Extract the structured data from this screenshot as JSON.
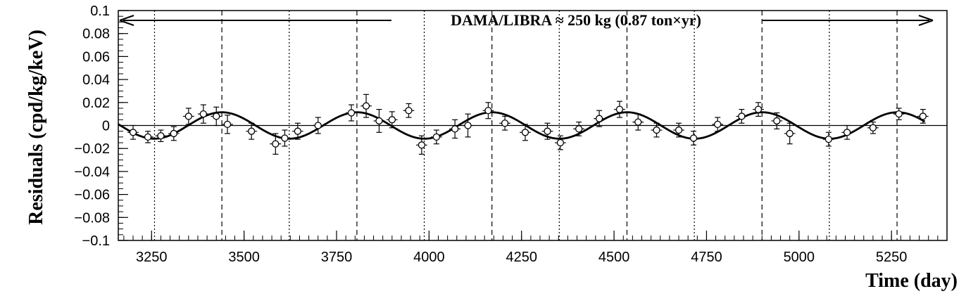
{
  "chart_data": {
    "type": "scatter",
    "xlabel": "Time (day)",
    "ylabel": "Residuals (cpd/kg/keV)",
    "xlim": [
      3160,
      5400
    ],
    "ylim": [
      -0.1,
      0.1
    ],
    "x_ticks": [
      "3250",
      "3500",
      "3750",
      "4000",
      "4250",
      "4500",
      "4750",
      "5000",
      "5250"
    ],
    "x_tick_values": [
      3250,
      3500,
      3750,
      4000,
      4250,
      4500,
      4750,
      5000,
      5250
    ],
    "y_ticks": [
      "0.1",
      "0.08",
      "0.06",
      "0.04",
      "0.02",
      "0",
      "−0.02",
      "−0.04",
      "−0.06",
      "−0.08",
      "−0.1"
    ],
    "y_tick_values": [
      0.1,
      0.08,
      0.06,
      0.04,
      0.02,
      0,
      -0.02,
      -0.04,
      -0.06,
      -0.08,
      -0.1
    ],
    "annotation": "DAMA/LIBRA ≈ 250 kg   (0.87 ton×yr)",
    "fit": {
      "amplitude": 0.0115,
      "period": 365.25,
      "phase": 152.5
    },
    "dashed_lines_x": [
      3440,
      3805,
      4170,
      4535,
      4900,
      5265
    ],
    "dotted_lines_x": [
      3258,
      3622,
      3987,
      4352,
      4717,
      5082
    ],
    "points": [
      {
        "x": 3200,
        "y": -0.006,
        "xerr": 15,
        "yerr": 0.006
      },
      {
        "x": 3240,
        "y": -0.01,
        "xerr": 15,
        "yerr": 0.005
      },
      {
        "x": 3275,
        "y": -0.009,
        "xerr": 15,
        "yerr": 0.005
      },
      {
        "x": 3310,
        "y": -0.007,
        "xerr": 15,
        "yerr": 0.006
      },
      {
        "x": 3350,
        "y": 0.008,
        "xerr": 15,
        "yerr": 0.007
      },
      {
        "x": 3390,
        "y": 0.01,
        "xerr": 15,
        "yerr": 0.008
      },
      {
        "x": 3425,
        "y": 0.008,
        "xerr": 15,
        "yerr": 0.008
      },
      {
        "x": 3455,
        "y": 0.001,
        "xerr": 15,
        "yerr": 0.008
      },
      {
        "x": 3520,
        "y": -0.005,
        "xerr": 15,
        "yerr": 0.007
      },
      {
        "x": 3585,
        "y": -0.016,
        "xerr": 15,
        "yerr": 0.009
      },
      {
        "x": 3610,
        "y": -0.011,
        "xerr": 15,
        "yerr": 0.007
      },
      {
        "x": 3645,
        "y": -0.005,
        "xerr": 15,
        "yerr": 0.007
      },
      {
        "x": 3700,
        "y": 0.0,
        "xerr": 15,
        "yerr": 0.007
      },
      {
        "x": 3790,
        "y": 0.011,
        "xerr": 15,
        "yerr": 0.007
      },
      {
        "x": 3830,
        "y": 0.017,
        "xerr": 15,
        "yerr": 0.01
      },
      {
        "x": 3865,
        "y": 0.004,
        "xerr": 15,
        "yerr": 0.01
      },
      {
        "x": 3900,
        "y": 0.005,
        "xerr": 15,
        "yerr": 0.007
      },
      {
        "x": 3945,
        "y": 0.013,
        "xerr": 15,
        "yerr": 0.006
      },
      {
        "x": 3980,
        "y": -0.017,
        "xerr": 15,
        "yerr": 0.008
      },
      {
        "x": 4020,
        "y": -0.01,
        "xerr": 15,
        "yerr": 0.006
      },
      {
        "x": 4070,
        "y": -0.003,
        "xerr": 15,
        "yerr": 0.008
      },
      {
        "x": 4105,
        "y": 0.0,
        "xerr": 15,
        "yerr": 0.01
      },
      {
        "x": 4160,
        "y": 0.013,
        "xerr": 15,
        "yerr": 0.007
      },
      {
        "x": 4205,
        "y": 0.002,
        "xerr": 15,
        "yerr": 0.006
      },
      {
        "x": 4260,
        "y": -0.006,
        "xerr": 15,
        "yerr": 0.007
      },
      {
        "x": 4320,
        "y": -0.005,
        "xerr": 15,
        "yerr": 0.007
      },
      {
        "x": 4355,
        "y": -0.015,
        "xerr": 15,
        "yerr": 0.006
      },
      {
        "x": 4405,
        "y": -0.003,
        "xerr": 15,
        "yerr": 0.006
      },
      {
        "x": 4460,
        "y": 0.006,
        "xerr": 15,
        "yerr": 0.007
      },
      {
        "x": 4515,
        "y": 0.014,
        "xerr": 15,
        "yerr": 0.007
      },
      {
        "x": 4565,
        "y": 0.003,
        "xerr": 15,
        "yerr": 0.007
      },
      {
        "x": 4615,
        "y": -0.004,
        "xerr": 15,
        "yerr": 0.006
      },
      {
        "x": 4675,
        "y": -0.004,
        "xerr": 15,
        "yerr": 0.006
      },
      {
        "x": 4715,
        "y": -0.011,
        "xerr": 15,
        "yerr": 0.006
      },
      {
        "x": 4780,
        "y": 0.001,
        "xerr": 15,
        "yerr": 0.006
      },
      {
        "x": 4845,
        "y": 0.008,
        "xerr": 15,
        "yerr": 0.006
      },
      {
        "x": 4890,
        "y": 0.014,
        "xerr": 15,
        "yerr": 0.006
      },
      {
        "x": 4940,
        "y": 0.004,
        "xerr": 15,
        "yerr": 0.007
      },
      {
        "x": 4975,
        "y": -0.007,
        "xerr": 15,
        "yerr": 0.009
      },
      {
        "x": 5080,
        "y": -0.012,
        "xerr": 15,
        "yerr": 0.006
      },
      {
        "x": 5130,
        "y": -0.006,
        "xerr": 15,
        "yerr": 0.006
      },
      {
        "x": 5200,
        "y": -0.002,
        "xerr": 15,
        "yerr": 0.005
      },
      {
        "x": 5270,
        "y": 0.01,
        "xerr": 15,
        "yerr": 0.005
      },
      {
        "x": 5335,
        "y": 0.008,
        "xerr": 15,
        "yerr": 0.006
      }
    ]
  }
}
